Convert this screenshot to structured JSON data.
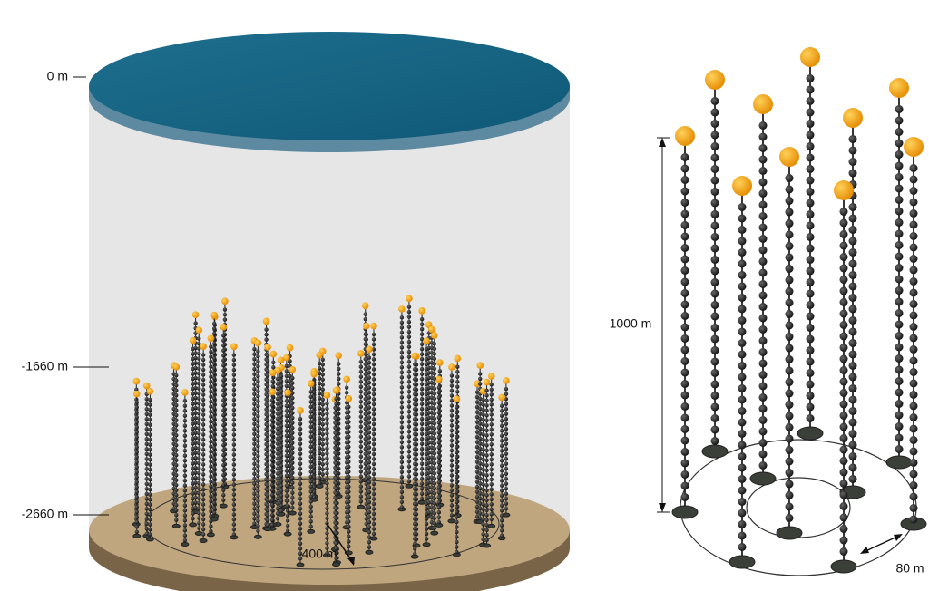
{
  "left_panel": {
    "depth_labels": [
      "0 m",
      "-1660 m",
      "-2660 m"
    ],
    "radius_label": "400 m"
  },
  "right_panel": {
    "height_label": "1000 m",
    "spacing_label": "80 m"
  }
}
